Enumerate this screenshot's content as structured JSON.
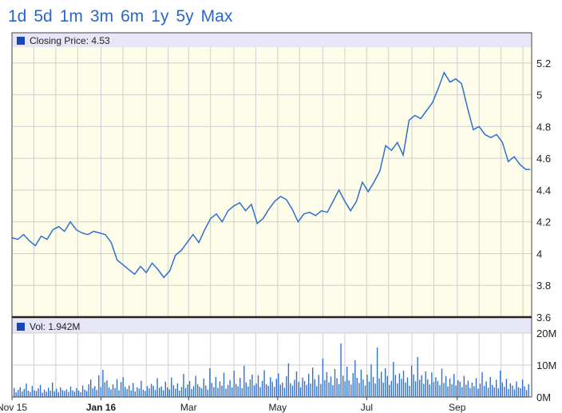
{
  "range_buttons": [
    {
      "label": "1d"
    },
    {
      "label": "5d"
    },
    {
      "label": "1m"
    },
    {
      "label": "3m"
    },
    {
      "label": "6m"
    },
    {
      "label": "1y"
    },
    {
      "label": "5y"
    },
    {
      "label": "Max"
    }
  ],
  "colors": {
    "line": "#2f6fd0",
    "volume": "#2f6fd0",
    "price_panel_bg": "#fdfdea",
    "legend_band": "#e6e6f6",
    "legend_box": "#1747b8",
    "grid": "#cfcfcf",
    "accent_text": "#2a67c4"
  },
  "chart_data": [
    {
      "type": "line",
      "legend": "Closing Price: 4.53",
      "ylim": [
        3.6,
        5.3
      ],
      "y_ticks": [
        "5.2",
        "5",
        "4.8",
        "4.6",
        "4.4",
        "4.2",
        "4",
        "3.8",
        "3.6"
      ],
      "x_range": [
        "2015-11-01",
        "2016-10-22"
      ],
      "x_ticks": [
        {
          "date": "2015-11-01",
          "label": "Nov 15",
          "bold": false
        },
        {
          "date": "2016-01-01",
          "label": "Jan 16",
          "bold": true
        },
        {
          "date": "2016-03-01",
          "label": "Mar",
          "bold": false
        },
        {
          "date": "2016-05-01",
          "label": "May",
          "bold": false
        },
        {
          "date": "2016-07-01",
          "label": "Jul",
          "bold": false
        },
        {
          "date": "2016-09-01",
          "label": "Sep",
          "bold": false
        }
      ],
      "grid": true,
      "series": [
        {
          "points": [
            [
              "2015-11-01",
              4.1
            ],
            [
              "2015-11-05",
              4.09
            ],
            [
              "2015-11-09",
              4.12
            ],
            [
              "2015-11-13",
              4.08
            ],
            [
              "2015-11-17",
              4.05
            ],
            [
              "2015-11-21",
              4.11
            ],
            [
              "2015-11-25",
              4.09
            ],
            [
              "2015-11-29",
              4.15
            ],
            [
              "2015-12-03",
              4.17
            ],
            [
              "2015-12-07",
              4.14
            ],
            [
              "2015-12-11",
              4.2
            ],
            [
              "2015-12-15",
              4.15
            ],
            [
              "2015-12-19",
              4.13
            ],
            [
              "2015-12-23",
              4.12
            ],
            [
              "2015-12-27",
              4.14
            ],
            [
              "2015-12-31",
              4.13
            ],
            [
              "2016-01-04",
              4.12
            ],
            [
              "2016-01-08",
              4.07
            ],
            [
              "2016-01-12",
              3.96
            ],
            [
              "2016-01-16",
              3.93
            ],
            [
              "2016-01-20",
              3.9
            ],
            [
              "2016-01-24",
              3.87
            ],
            [
              "2016-01-28",
              3.92
            ],
            [
              "2016-02-01",
              3.88
            ],
            [
              "2016-02-05",
              3.94
            ],
            [
              "2016-02-09",
              3.9
            ],
            [
              "2016-02-13",
              3.85
            ],
            [
              "2016-02-17",
              3.89
            ],
            [
              "2016-02-21",
              3.99
            ],
            [
              "2016-02-25",
              4.02
            ],
            [
              "2016-02-29",
              4.07
            ],
            [
              "2016-03-04",
              4.12
            ],
            [
              "2016-03-08",
              4.07
            ],
            [
              "2016-03-12",
              4.15
            ],
            [
              "2016-03-16",
              4.22
            ],
            [
              "2016-03-20",
              4.25
            ],
            [
              "2016-03-24",
              4.2
            ],
            [
              "2016-03-28",
              4.27
            ],
            [
              "2016-04-01",
              4.3
            ],
            [
              "2016-04-05",
              4.32
            ],
            [
              "2016-04-09",
              4.27
            ],
            [
              "2016-04-13",
              4.31
            ],
            [
              "2016-04-17",
              4.19
            ],
            [
              "2016-04-21",
              4.22
            ],
            [
              "2016-04-25",
              4.28
            ],
            [
              "2016-04-29",
              4.33
            ],
            [
              "2016-05-03",
              4.36
            ],
            [
              "2016-05-07",
              4.34
            ],
            [
              "2016-05-11",
              4.28
            ],
            [
              "2016-05-15",
              4.2
            ],
            [
              "2016-05-19",
              4.25
            ],
            [
              "2016-05-23",
              4.26
            ],
            [
              "2016-05-27",
              4.24
            ],
            [
              "2016-05-31",
              4.27
            ],
            [
              "2016-06-04",
              4.26
            ],
            [
              "2016-06-08",
              4.33
            ],
            [
              "2016-06-12",
              4.4
            ],
            [
              "2016-06-16",
              4.33
            ],
            [
              "2016-06-20",
              4.27
            ],
            [
              "2016-06-24",
              4.33
            ],
            [
              "2016-06-28",
              4.45
            ],
            [
              "2016-07-02",
              4.39
            ],
            [
              "2016-07-06",
              4.45
            ],
            [
              "2016-07-10",
              4.52
            ],
            [
              "2016-07-14",
              4.68
            ],
            [
              "2016-07-18",
              4.65
            ],
            [
              "2016-07-22",
              4.7
            ],
            [
              "2016-07-26",
              4.62
            ],
            [
              "2016-07-30",
              4.84
            ],
            [
              "2016-08-03",
              4.87
            ],
            [
              "2016-08-07",
              4.85
            ],
            [
              "2016-08-11",
              4.9
            ],
            [
              "2016-08-15",
              4.95
            ],
            [
              "2016-08-19",
              5.04
            ],
            [
              "2016-08-23",
              5.14
            ],
            [
              "2016-08-27",
              5.08
            ],
            [
              "2016-08-31",
              5.1
            ],
            [
              "2016-09-04",
              5.07
            ],
            [
              "2016-09-08",
              4.92
            ],
            [
              "2016-09-12",
              4.78
            ],
            [
              "2016-09-16",
              4.8
            ],
            [
              "2016-09-20",
              4.75
            ],
            [
              "2016-09-24",
              4.73
            ],
            [
              "2016-09-28",
              4.75
            ],
            [
              "2016-10-02",
              4.7
            ],
            [
              "2016-10-06",
              4.58
            ],
            [
              "2016-10-10",
              4.61
            ],
            [
              "2016-10-14",
              4.56
            ],
            [
              "2016-10-18",
              4.53
            ],
            [
              "2016-10-21",
              4.53
            ]
          ]
        }
      ]
    },
    {
      "type": "bar",
      "legend": "Vol: 1.942M",
      "ylim": [
        0,
        20
      ],
      "y_ticks": [
        "20M",
        "10M",
        "0M"
      ],
      "volumes_millions": [
        2.8,
        1.5,
        2.2,
        3.1,
        1.8,
        2.5,
        4.2,
        2.0,
        1.6,
        3.5,
        2.1,
        1.9,
        2.7,
        3.8,
        1.4,
        2.3,
        1.7,
        2.9,
        2.0,
        4.5,
        1.8,
        2.6,
        1.5,
        3.0,
        2.2,
        1.9,
        2.4,
        1.6,
        3.3,
        2.1,
        1.7,
        2.8,
        2.0,
        1.5,
        3.6,
        2.3,
        1.9,
        4.0,
        5.5,
        2.7,
        3.4,
        2.2,
        6.8,
        3.1,
        8.5,
        4.6,
        5.2,
        3.0,
        2.4,
        3.9,
        2.8,
        5.6,
        2.1,
        4.7,
        6.2,
        3.2,
        2.5,
        3.6,
        2.0,
        4.4,
        1.8,
        3.0,
        2.6,
        5.1,
        2.3,
        1.9,
        3.4,
        2.7,
        4.1,
        3.5,
        2.2,
        5.9,
        2.9,
        3.3,
        2.1,
        4.8,
        3.0,
        2.4,
        6.1,
        3.7,
        2.6,
        4.3,
        2.0,
        3.1,
        7.2,
        2.8,
        3.9,
        5.0,
        2.5,
        3.4,
        6.6,
        4.0,
        3.2,
        2.7,
        5.8,
        3.6,
        2.3,
        9.0,
        4.4,
        3.1,
        6.3,
        2.9,
        4.9,
        3.5,
        7.6,
        2.6,
        3.8,
        5.3,
        3.0,
        8.2,
        4.1,
        3.4,
        6.0,
        2.8,
        9.8,
        4.6,
        3.3,
        5.5,
        7.0,
        3.7,
        4.2,
        6.8,
        3.1,
        5.1,
        8.4,
        4.0,
        3.5,
        6.2,
        4.8,
        3.2,
        5.7,
        7.4,
        3.9,
        4.5,
        2.9,
        6.5,
        10.5,
        4.3,
        3.6,
        5.4,
        8.0,
        4.7,
        3.0,
        6.1,
        5.0,
        3.8,
        7.3,
        4.2,
        9.2,
        5.6,
        3.4,
        6.9,
        4.1,
        12.0,
        5.3,
        7.8,
        4.6,
        6.4,
        3.7,
        8.8,
        5.9,
        4.0,
        16.8,
        6.7,
        4.9,
        9.5,
        5.2,
        3.9,
        7.5,
        11.5,
        6.0,
        4.4,
        8.6,
        5.5,
        3.6,
        7.0,
        4.8,
        10.2,
        6.3,
        4.2,
        15.5,
        5.8,
        7.9,
        4.5,
        9.0,
        6.6,
        3.8,
        5.1,
        11.0,
        6.9,
        4.3,
        7.4,
        5.7,
        8.3,
        4.6,
        6.1,
        3.5,
        9.8,
        7.1,
        4.9,
        12.5,
        5.4,
        6.8,
        4.1,
        8.0,
        5.6,
        3.9,
        7.7,
        4.7,
        6.2,
        5.0,
        3.7,
        8.9,
        4.4,
        6.5,
        3.3,
        5.8,
        4.0,
        7.2,
        3.6,
        5.3,
        4.8,
        3.1,
        6.6,
        3.9,
        5.1,
        2.8,
        4.5,
        3.4,
        5.9,
        2.6,
        4.2,
        7.8,
        3.5,
        4.9,
        2.9,
        6.3,
        3.8,
        3.0,
        5.4,
        2.7,
        8.3,
        4.6,
        3.2,
        5.7,
        2.5,
        4.3,
        3.6,
        2.4,
        4.9,
        3.1,
        2.8,
        5.5,
        3.3,
        2.2,
        4.0
      ]
    }
  ]
}
